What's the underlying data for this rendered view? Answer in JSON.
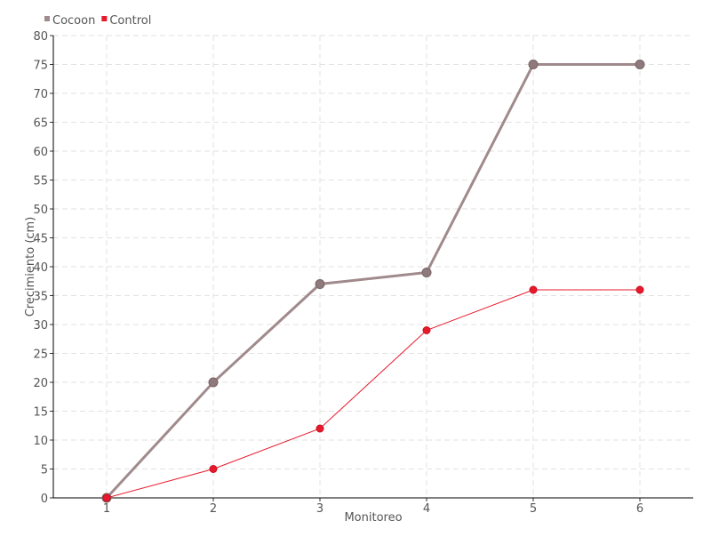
{
  "chart_data": {
    "type": "line",
    "title": "",
    "xlabel": "Monitoreo",
    "ylabel": "Crecimiento (cm)",
    "categories": [
      "1",
      "2",
      "3",
      "4",
      "5",
      "6"
    ],
    "x": [
      1,
      2,
      3,
      4,
      5,
      6
    ],
    "xlim": [
      0.5,
      6.5
    ],
    "ylim": [
      0,
      80
    ],
    "yticks": [
      0,
      5,
      10,
      15,
      20,
      25,
      30,
      35,
      40,
      45,
      50,
      55,
      60,
      65,
      70,
      75,
      80
    ],
    "grid": true,
    "legend": "top-left",
    "series": [
      {
        "name": "Cocoon",
        "values": [
          0,
          20,
          37,
          39,
          75,
          75
        ],
        "color": "#a08a8c"
      },
      {
        "name": "Control",
        "values": [
          0,
          5,
          12,
          29,
          36,
          36
        ],
        "color": "#e8192c"
      }
    ]
  }
}
